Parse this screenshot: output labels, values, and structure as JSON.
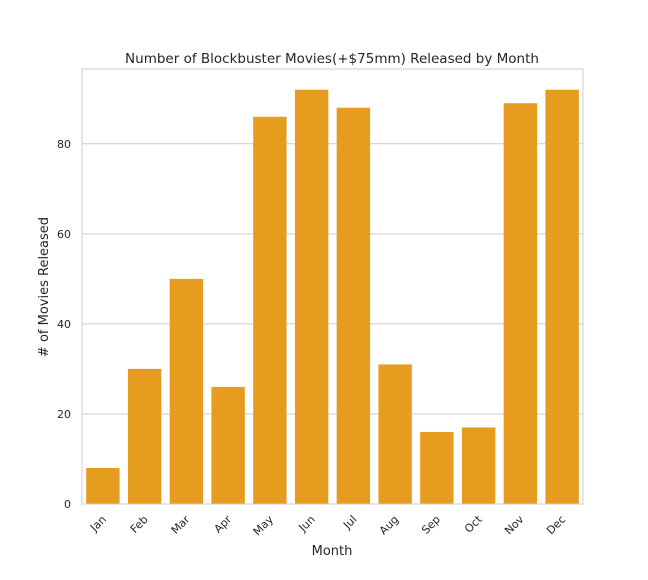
{
  "chart_data": {
    "type": "bar",
    "title": "Number of Blockbuster Movies(+$75mm) Released by Month",
    "xlabel": "Month",
    "ylabel": "# of Movies Released",
    "categories": [
      "Jan",
      "Feb",
      "Mar",
      "Apr",
      "May",
      "Jun",
      "Jul",
      "Aug",
      "Sep",
      "Oct",
      "Nov",
      "Dec"
    ],
    "values": [
      8,
      30,
      50,
      26,
      86,
      92,
      88,
      31,
      16,
      17,
      89,
      92
    ],
    "yticks": [
      0,
      20,
      40,
      60,
      80
    ],
    "ylim": [
      0,
      96.6
    ],
    "grid": "horizontal",
    "bar_color": "#e59c1f",
    "grid_color": "#cccccc",
    "axis_color": "#cccccc"
  }
}
